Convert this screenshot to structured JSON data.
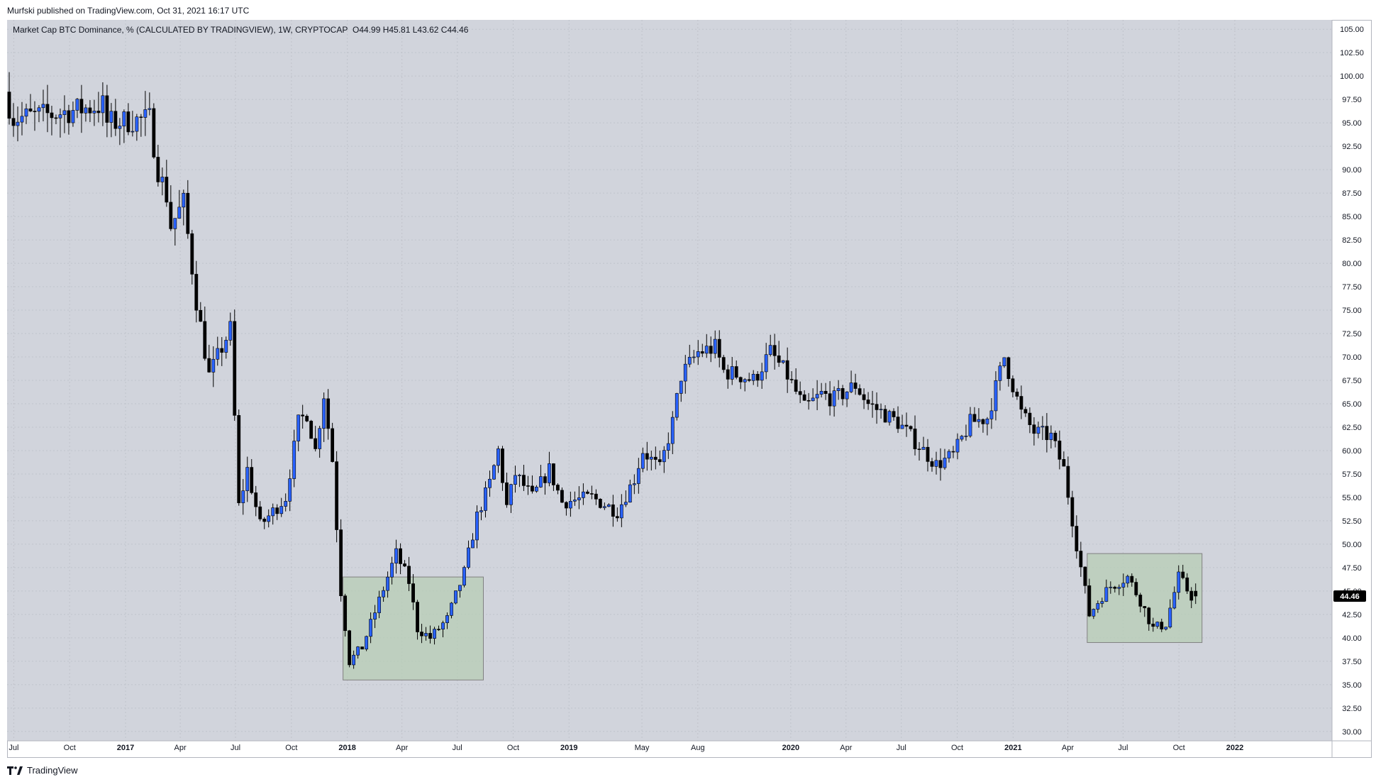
{
  "header": {
    "published_text": "Murfski published on TradingView.com, Oct 31, 2021 16:17 UTC",
    "series_title": "Market Cap BTC Dominance, % (CALCULATED BY TRADINGVIEW), 1W, CRYPTOCAP",
    "ohlc": "O44.99  H45.81  L43.62  C44.46"
  },
  "footer": {
    "brand": "TradingView"
  },
  "colors": {
    "background": "#d1d4dc",
    "up_candle": "#2962ff",
    "down_candle": "#000000",
    "box_fill": "#b7cdb6",
    "box_border": "#808080",
    "last_price_label_bg": "#000000",
    "grid": "#c0c3cb"
  },
  "chart_data": {
    "type": "candlestick",
    "timeframe": "1W",
    "ylim": [
      29,
      106
    ],
    "xlim": [
      "2016-06-20",
      "2022-06-10"
    ],
    "grid": true,
    "y_ticks": [
      "30.00",
      "32.50",
      "35.00",
      "37.50",
      "40.00",
      "42.50",
      "45.00",
      "47.50",
      "50.00",
      "52.50",
      "55.00",
      "57.50",
      "60.00",
      "62.50",
      "65.00",
      "67.50",
      "70.00",
      "72.50",
      "75.00",
      "77.50",
      "80.00",
      "82.50",
      "85.00",
      "87.50",
      "90.00",
      "92.50",
      "95.00",
      "97.50",
      "100.00",
      "102.50",
      "105.00"
    ],
    "x_ticks": [
      {
        "label": "Jul",
        "date": "2016-07-01"
      },
      {
        "label": "Oct",
        "date": "2016-10-01"
      },
      {
        "label": "2017",
        "date": "2017-01-01"
      },
      {
        "label": "Apr",
        "date": "2017-04-01"
      },
      {
        "label": "Jul",
        "date": "2017-07-01"
      },
      {
        "label": "Oct",
        "date": "2017-10-01"
      },
      {
        "label": "2018",
        "date": "2018-01-01"
      },
      {
        "label": "Apr",
        "date": "2018-04-01"
      },
      {
        "label": "Jul",
        "date": "2018-07-01"
      },
      {
        "label": "Oct",
        "date": "2018-10-01"
      },
      {
        "label": "2019",
        "date": "2019-01-01"
      },
      {
        "label": "May",
        "date": "2019-05-01"
      },
      {
        "label": "Aug",
        "date": "2019-08-01"
      },
      {
        "label": "2020",
        "date": "2020-01-01"
      },
      {
        "label": "Apr",
        "date": "2020-04-01"
      },
      {
        "label": "Jul",
        "date": "2020-07-01"
      },
      {
        "label": "Oct",
        "date": "2020-10-01"
      },
      {
        "label": "2021",
        "date": "2021-01-01"
      },
      {
        "label": "Apr",
        "date": "2021-04-01"
      },
      {
        "label": "Jul",
        "date": "2021-07-01"
      },
      {
        "label": "Oct",
        "date": "2021-10-01"
      },
      {
        "label": "2022",
        "date": "2022-01-01"
      }
    ],
    "last_price": 44.46,
    "last_ohlc": {
      "open": 44.99,
      "high": 45.81,
      "low": 43.62,
      "close": 44.46
    },
    "anchors": [
      {
        "date": "2016-06-20",
        "price": 98.3
      },
      {
        "date": "2016-07-04",
        "price": 95.5
      },
      {
        "date": "2016-09-05",
        "price": 95.9
      },
      {
        "date": "2016-11-28",
        "price": 96.9
      },
      {
        "date": "2016-12-05",
        "price": 95.0
      },
      {
        "date": "2017-02-13",
        "price": 95.4
      },
      {
        "date": "2017-02-27",
        "price": 90.0
      },
      {
        "date": "2017-03-13",
        "price": 87.2
      },
      {
        "date": "2017-03-20",
        "price": 84.0
      },
      {
        "date": "2017-04-10",
        "price": 86.5
      },
      {
        "date": "2017-05-01",
        "price": 76.0
      },
      {
        "date": "2017-05-22",
        "price": 68.0
      },
      {
        "date": "2017-06-12",
        "price": 71.0
      },
      {
        "date": "2017-06-26",
        "price": 73.0
      },
      {
        "date": "2017-07-10",
        "price": 54.0
      },
      {
        "date": "2017-07-24",
        "price": 58.0
      },
      {
        "date": "2017-08-14",
        "price": 52.0
      },
      {
        "date": "2017-09-04",
        "price": 53.5
      },
      {
        "date": "2017-09-25",
        "price": 55.0
      },
      {
        "date": "2017-10-16",
        "price": 63.0
      },
      {
        "date": "2017-10-30",
        "price": 64.0
      },
      {
        "date": "2017-11-13",
        "price": 60.0
      },
      {
        "date": "2017-11-27",
        "price": 66.0
      },
      {
        "date": "2017-12-11",
        "price": 59.0
      },
      {
        "date": "2017-12-25",
        "price": 45.0
      },
      {
        "date": "2018-01-08",
        "price": 37.5
      },
      {
        "date": "2018-01-29",
        "price": 39.0
      },
      {
        "date": "2018-02-26",
        "price": 44.0
      },
      {
        "date": "2018-03-26",
        "price": 49.0
      },
      {
        "date": "2018-04-16",
        "price": 46.0
      },
      {
        "date": "2018-04-30",
        "price": 41.0
      },
      {
        "date": "2018-05-21",
        "price": 40.0
      },
      {
        "date": "2018-06-18",
        "price": 42.0
      },
      {
        "date": "2018-07-16",
        "price": 47.0
      },
      {
        "date": "2018-08-06",
        "price": 53.0
      },
      {
        "date": "2018-08-27",
        "price": 56.5
      },
      {
        "date": "2018-09-10",
        "price": 60.0
      },
      {
        "date": "2018-09-24",
        "price": 54.0
      },
      {
        "date": "2018-10-08",
        "price": 57.5
      },
      {
        "date": "2018-11-05",
        "price": 55.0
      },
      {
        "date": "2018-12-03",
        "price": 58.0
      },
      {
        "date": "2018-12-24",
        "price": 54.5
      },
      {
        "date": "2019-02-11",
        "price": 55.0
      },
      {
        "date": "2019-03-25",
        "price": 53.5
      },
      {
        "date": "2019-04-22",
        "price": 57.0
      },
      {
        "date": "2019-05-06",
        "price": 60.0
      },
      {
        "date": "2019-06-03",
        "price": 58.0
      },
      {
        "date": "2019-06-24",
        "price": 63.0
      },
      {
        "date": "2019-07-08",
        "price": 68.0
      },
      {
        "date": "2019-08-05",
        "price": 70.5
      },
      {
        "date": "2019-09-02",
        "price": 71.0
      },
      {
        "date": "2019-09-16",
        "price": 68.5
      },
      {
        "date": "2019-10-14",
        "price": 68.0
      },
      {
        "date": "2019-11-04",
        "price": 67.5
      },
      {
        "date": "2019-12-02",
        "price": 70.5
      },
      {
        "date": "2019-12-30",
        "price": 68.0
      },
      {
        "date": "2020-01-27",
        "price": 64.5
      },
      {
        "date": "2020-02-24",
        "price": 66.0
      },
      {
        "date": "2020-03-16",
        "price": 65.5
      },
      {
        "date": "2020-04-20",
        "price": 67.0
      },
      {
        "date": "2020-05-11",
        "price": 65.0
      },
      {
        "date": "2020-06-29",
        "price": 63.0
      },
      {
        "date": "2020-08-03",
        "price": 60.5
      },
      {
        "date": "2020-08-31",
        "price": 58.5
      },
      {
        "date": "2020-09-28",
        "price": 59.5
      },
      {
        "date": "2020-10-26",
        "price": 63.0
      },
      {
        "date": "2020-11-23",
        "price": 63.5
      },
      {
        "date": "2020-12-21",
        "price": 70.0
      },
      {
        "date": "2021-01-18",
        "price": 64.0
      },
      {
        "date": "2021-02-08",
        "price": 62.0
      },
      {
        "date": "2021-03-08",
        "price": 61.5
      },
      {
        "date": "2021-03-29",
        "price": 58.0
      },
      {
        "date": "2021-04-19",
        "price": 50.0
      },
      {
        "date": "2021-05-10",
        "price": 42.5
      },
      {
        "date": "2021-05-31",
        "price": 44.5
      },
      {
        "date": "2021-06-14",
        "price": 45.5
      },
      {
        "date": "2021-07-12",
        "price": 46.5
      },
      {
        "date": "2021-08-02",
        "price": 44.0
      },
      {
        "date": "2021-08-23",
        "price": 41.0
      },
      {
        "date": "2021-09-13",
        "price": 41.5
      },
      {
        "date": "2021-10-04",
        "price": 46.5
      },
      {
        "date": "2021-10-25",
        "price": 44.46
      }
    ],
    "boxes": [
      {
        "start": "2017-12-25",
        "end": "2018-08-13",
        "low": 35.5,
        "high": 46.5
      },
      {
        "start": "2021-05-03",
        "end": "2021-11-08",
        "low": 39.5,
        "high": 49.0
      }
    ]
  }
}
